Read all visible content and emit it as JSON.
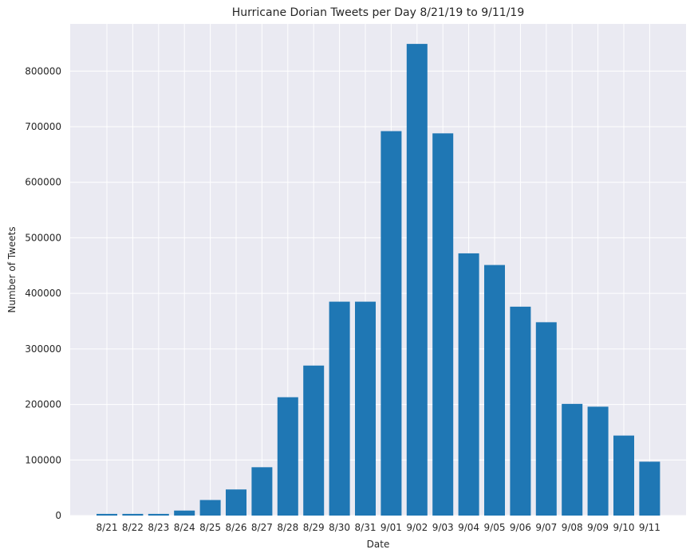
{
  "chart_data": {
    "type": "bar",
    "title": "Hurricane Dorian Tweets per Day 8/21/19 to 9/11/19",
    "xlabel": "Date",
    "ylabel": "Number of Tweets",
    "categories": [
      "8/21",
      "8/22",
      "8/23",
      "8/24",
      "8/25",
      "8/26",
      "8/27",
      "8/28",
      "8/29",
      "8/30",
      "8/31",
      "9/01",
      "9/02",
      "9/03",
      "9/04",
      "9/05",
      "9/06",
      "9/07",
      "9/08",
      "9/09",
      "9/10",
      "9/11"
    ],
    "values": [
      3000,
      3000,
      3000,
      9000,
      28000,
      47000,
      87000,
      213000,
      270000,
      385000,
      385000,
      692000,
      849000,
      688000,
      472000,
      451000,
      376000,
      348000,
      201000,
      196000,
      144000,
      97000
    ],
    "ylim": [
      0,
      885000
    ],
    "yticks": [
      0,
      100000,
      200000,
      300000,
      400000,
      500000,
      600000,
      700000,
      800000
    ],
    "grid": true,
    "colors": {
      "bar": "#1f77b4",
      "plot_background": "#eaeaf2",
      "grid": "#ffffff",
      "text": "#262626"
    }
  }
}
